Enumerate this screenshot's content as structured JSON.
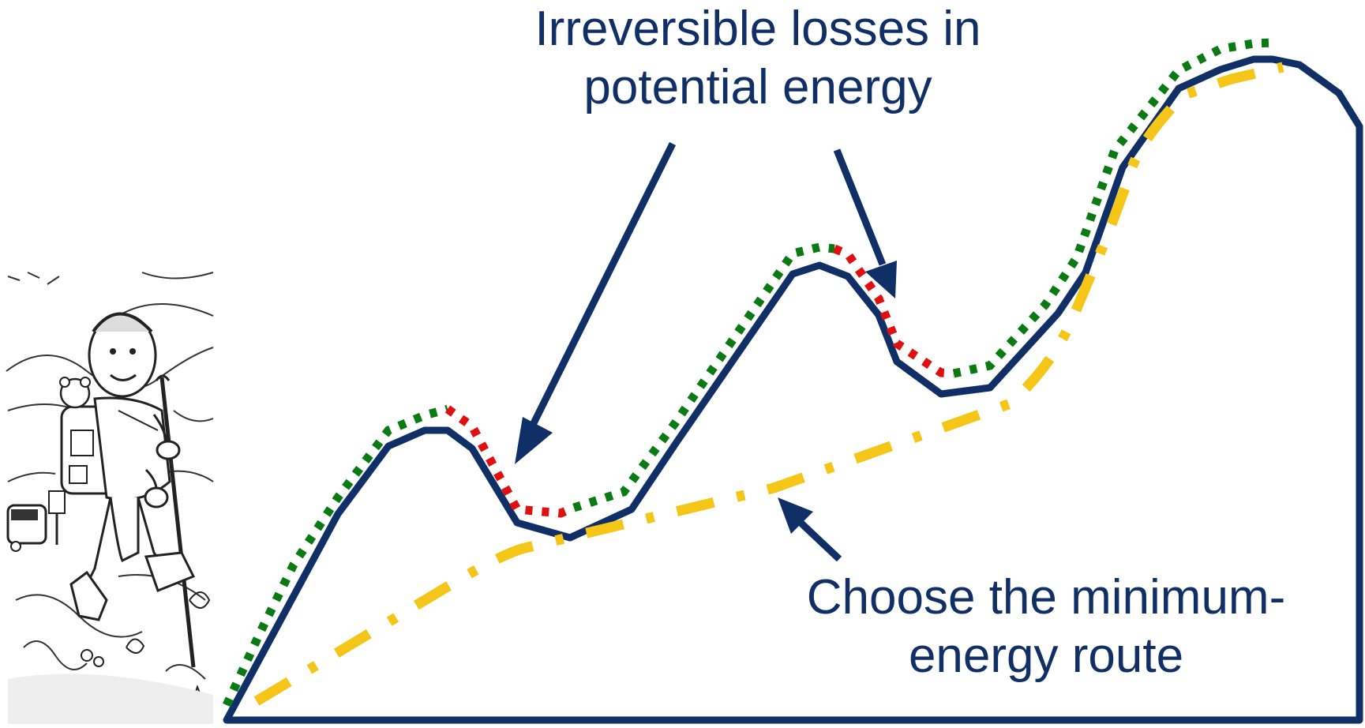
{
  "annotations": {
    "losses_label": {
      "line1": "Irreversible losses in",
      "line2": "potential energy"
    },
    "route_label": {
      "line1": "Choose the minimum-",
      "line2": "energy route"
    }
  },
  "illustration": {
    "subject": "hiker-cartoon"
  },
  "colors": {
    "mountain_outline": "#0f2f66",
    "green_path": "#0a7a12",
    "red_losses": "#e01010",
    "min_energy_route": "#f5c518",
    "text": "#0f2f66"
  }
}
